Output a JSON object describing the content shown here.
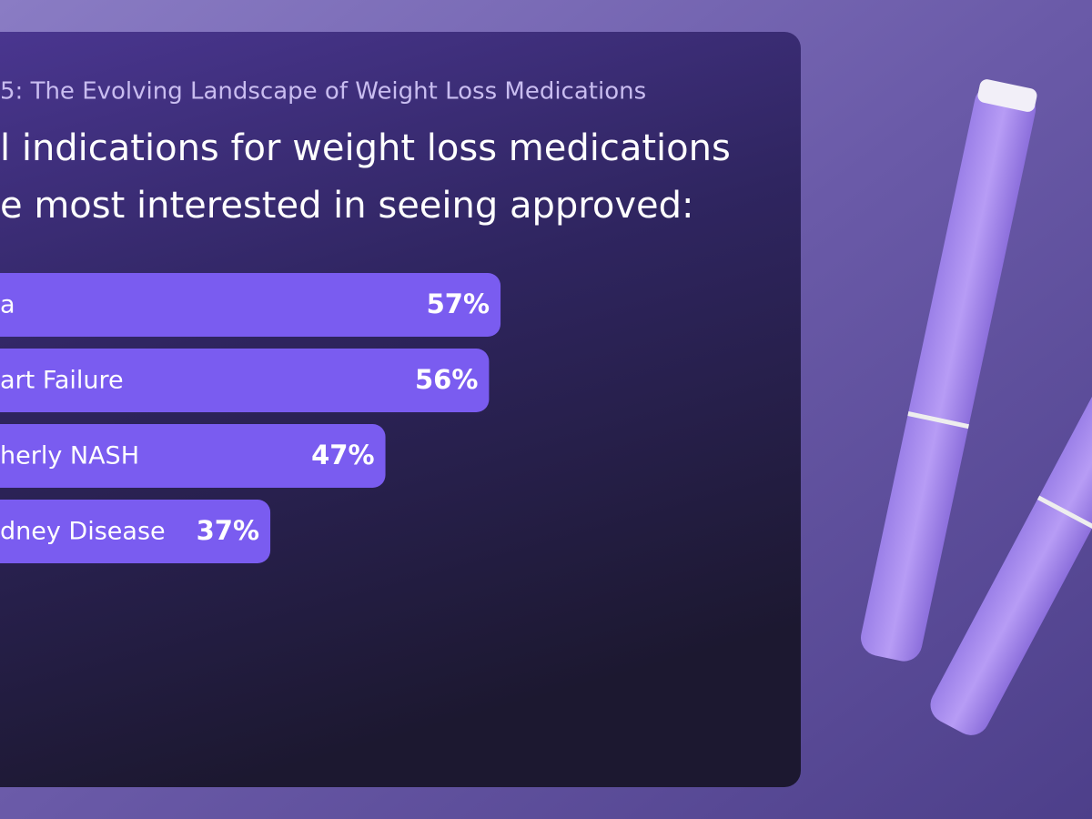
{
  "chart_data": {
    "type": "bar",
    "orientation": "horizontal",
    "subtitle": "5: The Evolving Landscape of Weight Loss Medications",
    "title_lines": [
      "l indications for weight loss medications",
      "e most interested in seeing approved:"
    ],
    "categories": [
      "a",
      "art Failure",
      "herly NASH",
      "dney Disease"
    ],
    "values": [
      57,
      56,
      47,
      37
    ],
    "value_labels": [
      "57%",
      "56%",
      "47%",
      "37%"
    ],
    "color": "#7a5cf0"
  }
}
